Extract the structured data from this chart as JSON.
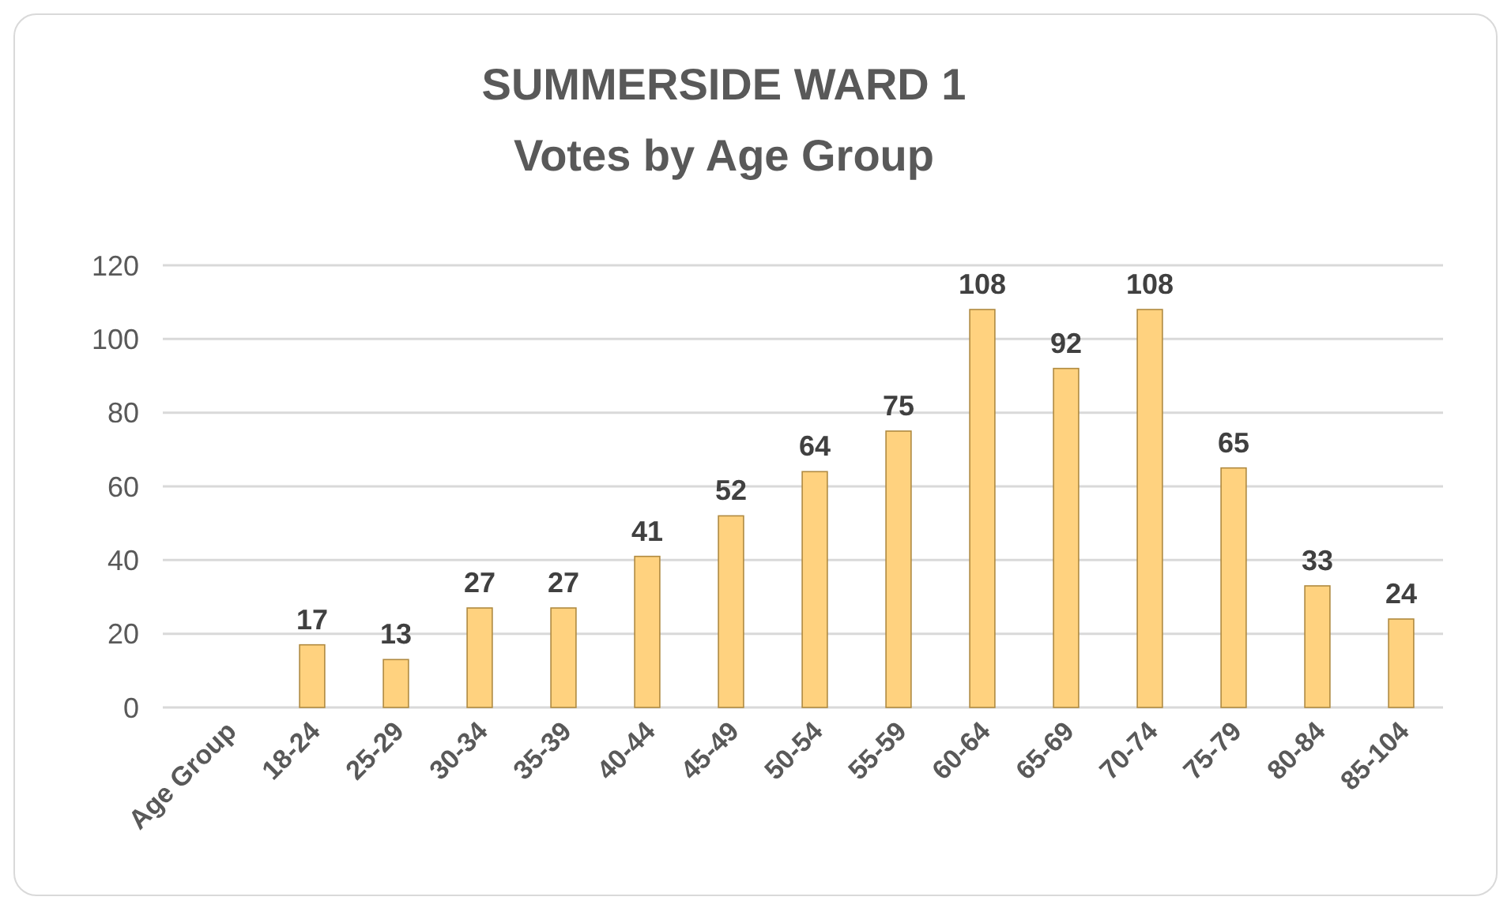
{
  "chart_data": {
    "type": "bar",
    "title": "SUMMERSIDE WARD 1",
    "subtitle": "Votes by Age Group",
    "categories": [
      "Age Group",
      "18-24",
      "25-29",
      "30-34",
      "35-39",
      "40-44",
      "45-49",
      "50-54",
      "55-59",
      "60-64",
      "65-69",
      "70-74",
      "75-79",
      "80-84",
      "85-104"
    ],
    "values": [
      null,
      17,
      13,
      27,
      27,
      41,
      52,
      64,
      75,
      108,
      92,
      108,
      65,
      33,
      24
    ],
    "color": "#ffd27f",
    "ylim": [
      0,
      120
    ],
    "yticks": [
      0,
      20,
      40,
      60,
      80,
      100,
      120
    ],
    "grid": "y",
    "data_labels": true
  }
}
